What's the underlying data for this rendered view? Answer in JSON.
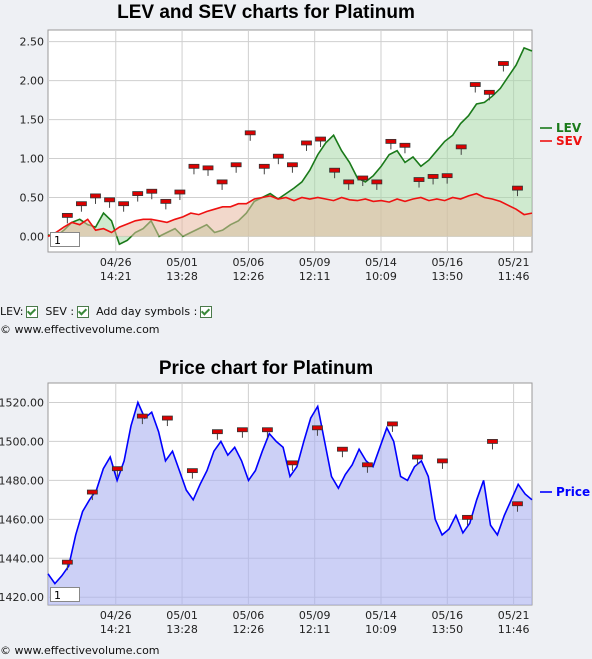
{
  "chart_data": [
    {
      "type": "line",
      "title": "LEV and SEV charts for Platinum",
      "ylim": [
        -0.2,
        2.65
      ],
      "yticks": [
        "0.00",
        "0.50",
        "1.00",
        "1.50",
        "2.00",
        "2.50"
      ],
      "ytick_values": [
        0,
        0.5,
        1.0,
        1.5,
        2.0,
        2.5
      ],
      "xticks": [
        {
          "date": "04/26",
          "time": "14:21"
        },
        {
          "date": "05/01",
          "time": "13:28"
        },
        {
          "date": "05/06",
          "time": "12:26"
        },
        {
          "date": "05/09",
          "time": "12:11"
        },
        {
          "date": "05/14",
          "time": "10:09"
        },
        {
          "date": "05/16",
          "time": "13:50"
        },
        {
          "date": "05/21",
          "time": "11:46"
        }
      ],
      "series": [
        {
          "name": "LEV",
          "color": "#1a7a1a",
          "values": [
            0.02,
            0.0,
            0.08,
            0.18,
            0.22,
            0.15,
            0.12,
            0.3,
            0.2,
            -0.1,
            -0.05,
            0.05,
            0.1,
            0.2,
            0.0,
            0.05,
            0.1,
            0.0,
            0.05,
            0.1,
            0.15,
            0.05,
            0.08,
            0.15,
            0.2,
            0.3,
            0.45,
            0.5,
            0.55,
            0.48,
            0.55,
            0.62,
            0.7,
            0.85,
            1.05,
            1.2,
            1.3,
            1.1,
            0.95,
            0.75,
            0.7,
            0.78,
            0.9,
            1.05,
            1.1,
            0.95,
            1.02,
            0.9,
            0.98,
            1.1,
            1.22,
            1.3,
            1.45,
            1.55,
            1.7,
            1.72,
            1.8,
            1.9,
            2.05,
            2.2,
            2.42,
            2.38
          ]
        },
        {
          "name": "SEV",
          "color": "#ee1111",
          "values": [
            0.0,
            0.05,
            0.12,
            0.18,
            0.15,
            0.22,
            0.08,
            0.1,
            0.05,
            0.12,
            0.16,
            0.2,
            0.22,
            0.22,
            0.2,
            0.18,
            0.22,
            0.25,
            0.3,
            0.28,
            0.32,
            0.35,
            0.38,
            0.38,
            0.42,
            0.42,
            0.48,
            0.5,
            0.52,
            0.48,
            0.5,
            0.46,
            0.5,
            0.48,
            0.5,
            0.48,
            0.46,
            0.5,
            0.47,
            0.46,
            0.48,
            0.45,
            0.46,
            0.44,
            0.48,
            0.45,
            0.48,
            0.5,
            0.46,
            0.48,
            0.46,
            0.5,
            0.48,
            0.52,
            0.55,
            0.5,
            0.48,
            0.45,
            0.4,
            0.35,
            0.28,
            0.3
          ]
        }
      ],
      "day_markers": [
        0.27,
        0.42,
        0.52,
        0.47,
        0.42,
        0.55,
        0.58,
        0.45,
        0.57,
        0.9,
        0.88,
        0.7,
        0.92,
        1.33,
        0.9,
        1.03,
        0.92,
        1.2,
        1.25,
        0.85,
        0.7,
        0.75,
        0.7,
        1.22,
        1.17,
        0.73,
        0.77,
        0.78,
        1.15,
        1.95,
        1.85,
        2.22,
        0.62
      ]
    },
    {
      "type": "area",
      "title": "Price chart for Platinum",
      "ylim": [
        1416,
        1530
      ],
      "yticks": [
        "1420.00",
        "1440.00",
        "1460.00",
        "1480.00",
        "1500.00",
        "1520.00"
      ],
      "ytick_values": [
        1420,
        1440,
        1460,
        1480,
        1500,
        1520
      ],
      "xticks": [
        {
          "date": "04/26",
          "time": "14:21"
        },
        {
          "date": "05/01",
          "time": "13:28"
        },
        {
          "date": "05/06",
          "time": "12:26"
        },
        {
          "date": "05/09",
          "time": "12:11"
        },
        {
          "date": "05/14",
          "time": "10:09"
        },
        {
          "date": "05/16",
          "time": "13:50"
        },
        {
          "date": "05/21",
          "time": "11:46"
        }
      ],
      "series": [
        {
          "name": "Price",
          "color": "#0000ff",
          "values": [
            1432,
            1427,
            1431,
            1436,
            1452,
            1464,
            1470,
            1475,
            1486,
            1492,
            1480,
            1490,
            1508,
            1520,
            1512,
            1515,
            1505,
            1490,
            1495,
            1485,
            1475,
            1470,
            1478,
            1485,
            1495,
            1500,
            1493,
            1497,
            1490,
            1480,
            1485,
            1495,
            1504,
            1500,
            1497,
            1482,
            1487,
            1500,
            1512,
            1518,
            1500,
            1482,
            1476,
            1483,
            1488,
            1496,
            1490,
            1487,
            1497,
            1507,
            1500,
            1482,
            1480,
            1487,
            1490,
            1482,
            1460,
            1452,
            1455,
            1462,
            1453,
            1458,
            1470,
            1480,
            1457,
            1452,
            1462,
            1470,
            1478,
            1473,
            1470
          ]
        }
      ],
      "day_markers": [
        1438,
        1474,
        1486,
        1513,
        1512,
        1485,
        1505,
        1506,
        1506,
        1489,
        1507,
        1496,
        1488,
        1509,
        1492,
        1490,
        1461,
        1500,
        1468
      ]
    }
  ],
  "controls": {
    "lev_label": "LEV:",
    "sev_label": "SEV :",
    "day_symbols_label": "Add day symbols :"
  },
  "copyright_1": "© www.effectivevolume.com",
  "copyright_2": "© www.effectivevolume.com",
  "box_1": "1",
  "box_2": "1"
}
